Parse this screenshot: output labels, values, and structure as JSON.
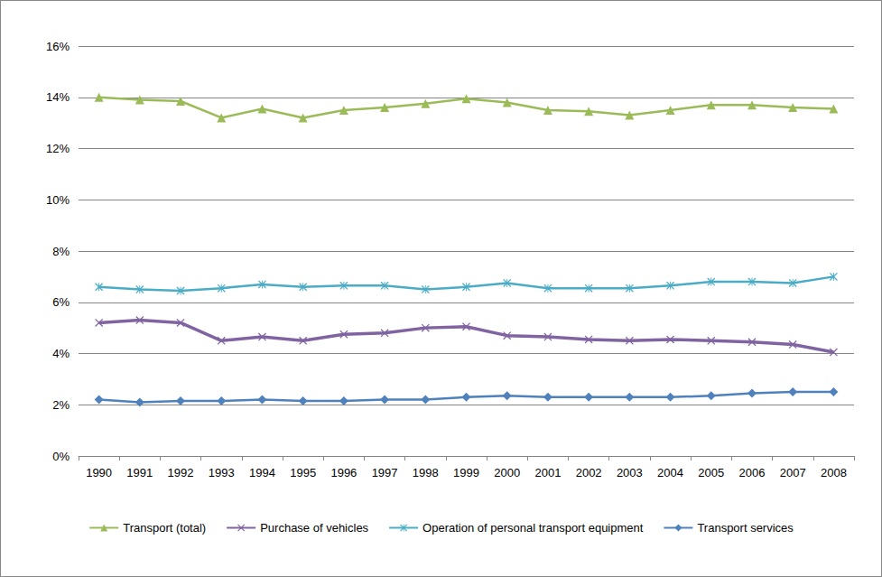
{
  "chart_data": {
    "type": "line",
    "categories": [
      "1990",
      "1991",
      "1992",
      "1993",
      "1994",
      "1995",
      "1996",
      "1997",
      "1998",
      "1999",
      "2000",
      "2001",
      "2002",
      "2003",
      "2004",
      "2005",
      "2006",
      "2007",
      "2008"
    ],
    "series": [
      {
        "name": "Transport (total)",
        "color": "#9bbb59",
        "marker": "triangle",
        "values": [
          14.0,
          13.9,
          13.85,
          13.2,
          13.55,
          13.2,
          13.5,
          13.6,
          13.75,
          13.95,
          13.8,
          13.5,
          13.45,
          13.3,
          13.5,
          13.7,
          13.7,
          13.6,
          13.55
        ]
      },
      {
        "name": "Purchase of vehicles",
        "color": "#8064a2",
        "marker": "x",
        "values": [
          5.2,
          5.3,
          5.2,
          4.5,
          4.65,
          4.5,
          4.75,
          4.8,
          5.0,
          5.05,
          4.7,
          4.65,
          4.55,
          4.5,
          4.55,
          4.5,
          4.45,
          4.35,
          4.05
        ]
      },
      {
        "name": "Operation of personal transport equipment",
        "color": "#4bacc6",
        "marker": "asterisk",
        "values": [
          6.6,
          6.5,
          6.45,
          6.55,
          6.7,
          6.6,
          6.65,
          6.65,
          6.5,
          6.6,
          6.75,
          6.55,
          6.55,
          6.55,
          6.65,
          6.8,
          6.8,
          6.75,
          7.0
        ]
      },
      {
        "name": "Transport services",
        "color": "#4f81bd",
        "marker": "diamond",
        "values": [
          2.2,
          2.1,
          2.15,
          2.15,
          2.2,
          2.15,
          2.15,
          2.2,
          2.2,
          2.3,
          2.35,
          2.3,
          2.3,
          2.3,
          2.3,
          2.35,
          2.45,
          2.5,
          2.5
        ]
      }
    ],
    "ylim": [
      0,
      16
    ],
    "yticks": [
      {
        "value": 0,
        "label": "0%"
      },
      {
        "value": 2,
        "label": "2%"
      },
      {
        "value": 4,
        "label": "4%"
      },
      {
        "value": 6,
        "label": "6%"
      },
      {
        "value": 8,
        "label": "8%"
      },
      {
        "value": 10,
        "label": "10%"
      },
      {
        "value": 12,
        "label": "12%"
      },
      {
        "value": 14,
        "label": "14%"
      },
      {
        "value": 16,
        "label": "16%"
      }
    ],
    "grid": true,
    "legend": "bottom"
  }
}
